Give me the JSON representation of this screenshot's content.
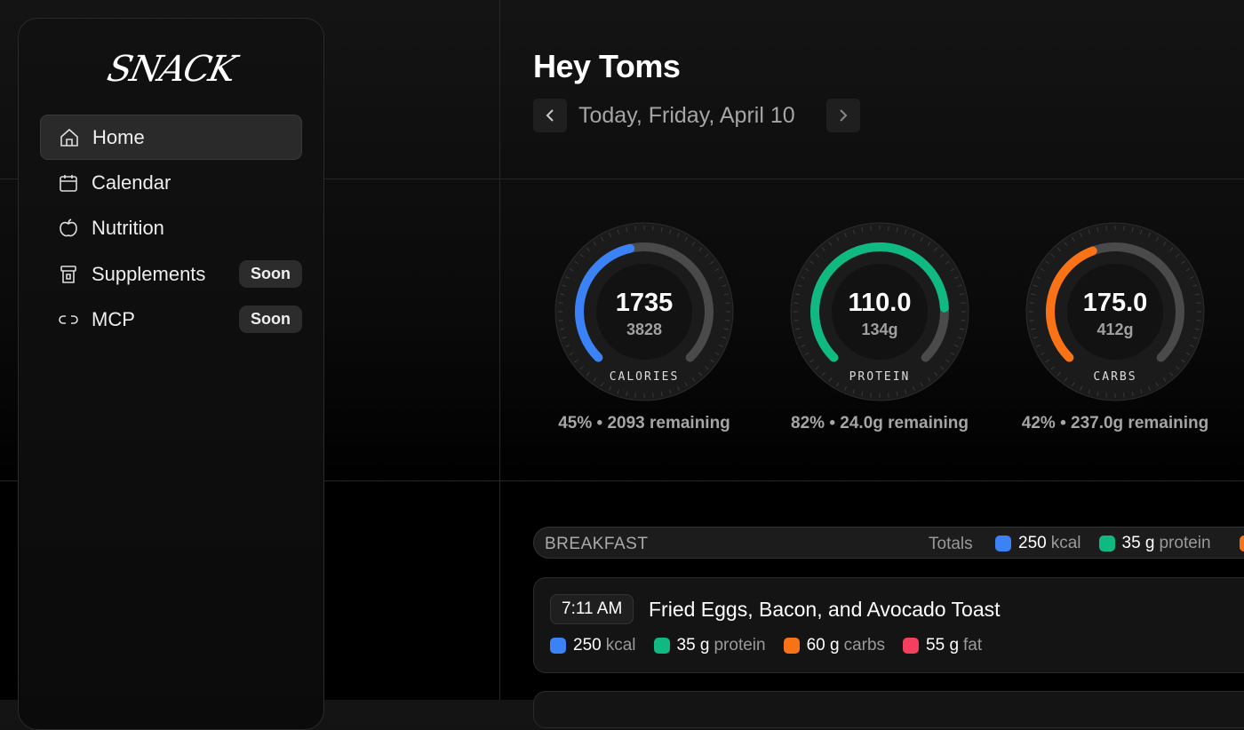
{
  "sidebar": {
    "logo": "SNACK",
    "nav": [
      {
        "label": "Home",
        "active": true
      },
      {
        "label": "Calendar"
      },
      {
        "label": "Nutrition"
      },
      {
        "label": "Supplements",
        "badge": "Soon"
      },
      {
        "label": "MCP",
        "badge": "Soon"
      }
    ]
  },
  "header": {
    "greeting": "Hey Toms",
    "date": "Today, Friday, April 10"
  },
  "gauges": [
    {
      "label": "CALORIES",
      "value": 1735,
      "goal": 3828,
      "goal_label": "3828",
      "color": "#3b82f6",
      "caption": "45% • 2093 remaining"
    },
    {
      "label": "PROTEIN",
      "value": 110,
      "value_label": "110.0",
      "goal": 134,
      "goal_label": "134g",
      "color": "#10b981",
      "caption": "82% • 24.0g remaining"
    },
    {
      "label": "CARBS",
      "value": 175,
      "value_label": "175.0",
      "goal": 412,
      "goal_label": "412g",
      "color": "#f97316",
      "caption": "42% • 237.0g remaining"
    }
  ],
  "meals": [
    {
      "name": "BREAKFAST",
      "totals_label": "Totals",
      "totals": [
        {
          "amount": "250",
          "unit": "kcal",
          "color": "#3b82f6"
        },
        {
          "amount": "35 g",
          "unit": "protein",
          "color": "#10b981"
        }
      ],
      "items": [
        {
          "time": "7:11 AM",
          "title": "Fried Eggs, Bacon, and Avocado Toast",
          "macros": [
            {
              "amount": "250",
              "unit": "kcal",
              "color": "#3b82f6"
            },
            {
              "amount": "35 g",
              "unit": "protein",
              "color": "#10b981"
            },
            {
              "amount": "60 g",
              "unit": "carbs",
              "color": "#f97316"
            },
            {
              "amount": "55 g",
              "unit": "fat",
              "color": "#f43f5e"
            }
          ]
        }
      ]
    }
  ]
}
